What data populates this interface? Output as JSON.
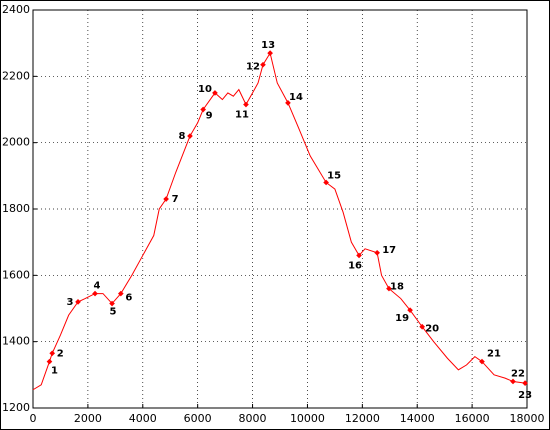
{
  "chart_data": {
    "type": "line",
    "xlim": [
      0,
      18000
    ],
    "ylim": [
      1200,
      2400
    ],
    "xticks": [
      0,
      2000,
      4000,
      6000,
      8000,
      10000,
      12000,
      14000,
      16000,
      18000
    ],
    "yticks": [
      1200,
      1400,
      1600,
      1800,
      2000,
      2200,
      2400
    ],
    "grid": true,
    "series": [
      {
        "color": "#ff0000",
        "x": [
          0,
          300,
          600,
          700,
          1000,
          1300,
          1640,
          1900,
          2260,
          2550,
          2880,
          3200,
          3600,
          4000,
          4400,
          4600,
          4850,
          5200,
          5720,
          6000,
          6200,
          6630,
          6900,
          7100,
          7300,
          7500,
          7760,
          8000,
          8200,
          8380,
          8640,
          8900,
          9290,
          9700,
          10100,
          10680,
          11000,
          11300,
          11600,
          11880,
          12100,
          12540,
          12700,
          12970,
          13400,
          13740,
          14180,
          14600,
          15100,
          15500,
          15800,
          16100,
          16360,
          16800,
          17200,
          17490,
          17930
        ],
        "values": [
          1255,
          1270,
          1340,
          1365,
          1420,
          1480,
          1520,
          1530,
          1545,
          1545,
          1515,
          1545,
          1600,
          1660,
          1720,
          1800,
          1830,
          1910,
          2020,
          2060,
          2100,
          2150,
          2130,
          2150,
          2140,
          2160,
          2115,
          2150,
          2180,
          2235,
          2270,
          2180,
          2120,
          2040,
          1960,
          1880,
          1860,
          1790,
          1700,
          1660,
          1680,
          1668,
          1600,
          1560,
          1530,
          1495,
          1445,
          1400,
          1350,
          1315,
          1330,
          1355,
          1340,
          1300,
          1290,
          1280,
          1275
        ]
      }
    ],
    "points": {
      "color": "#ff0000",
      "labels": [
        "1",
        "2",
        "3",
        "4",
        "5",
        "6",
        "7",
        "8",
        "9",
        "10",
        "11",
        "12",
        "13",
        "14",
        "15",
        "16",
        "17",
        "18",
        "19",
        "20",
        "21",
        "22",
        "23"
      ],
      "x": [
        600,
        700,
        1640,
        2260,
        2880,
        3200,
        4850,
        5720,
        6200,
        6630,
        7760,
        8380,
        8640,
        9290,
        10680,
        11880,
        12540,
        12970,
        13740,
        14180,
        16360,
        17490,
        17930
      ],
      "values": [
        1340,
        1365,
        1520,
        1545,
        1515,
        1545,
        1830,
        2020,
        2100,
        2150,
        2115,
        2235,
        2270,
        2120,
        1880,
        1660,
        1668,
        1560,
        1495,
        1445,
        1340,
        1280,
        1275
      ]
    }
  }
}
